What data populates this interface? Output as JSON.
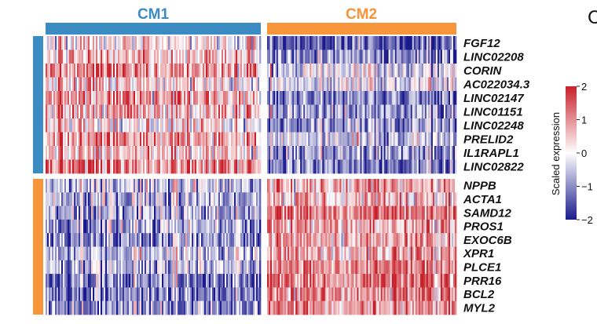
{
  "figure": {
    "panel_label": "C"
  },
  "chart_data": {
    "type": "heatmap",
    "column_groups": [
      {
        "name": "CM1",
        "color": "#3a8cc2"
      },
      {
        "name": "CM2",
        "color": "#f7953b"
      }
    ],
    "row_groups": [
      {
        "color": "#3a8cc2",
        "rows": [
          "FGF12",
          "LINC02208",
          "CORIN",
          "AC022034.3",
          "LINC02147",
          "LINC01151",
          "LINC02248",
          "PRELID2",
          "IL1RAPL1",
          "LINC02822"
        ]
      },
      {
        "color": "#f7953b",
        "rows": [
          "NPPB",
          "ACTA1",
          "SAMD12",
          "PROS1",
          "EXOC6B",
          "XPR1",
          "PLCE1",
          "PRR16",
          "BCL2",
          "MYL2"
        ]
      }
    ],
    "mean_scaled_expression": {
      "description_of_blocks": "CM2-marker genes high in CM2, CM1-marker genes high in CM1",
      "cm1_genes": {
        "CM1": 0.7,
        "CM2": -0.9
      },
      "cm2_genes": {
        "CM1": -0.6,
        "CM2": 0.8
      }
    },
    "color_scale": {
      "title": "Scaled expression",
      "ticks": [
        "2",
        "1",
        "0",
        "−1",
        "−2"
      ],
      "tick_values": [
        2,
        1,
        0,
        -1,
        -2
      ],
      "range": [
        -2,
        2
      ],
      "low_color": "#1a1a8c",
      "mid_color": "#ffffff",
      "high_color": "#c8202a"
    }
  }
}
